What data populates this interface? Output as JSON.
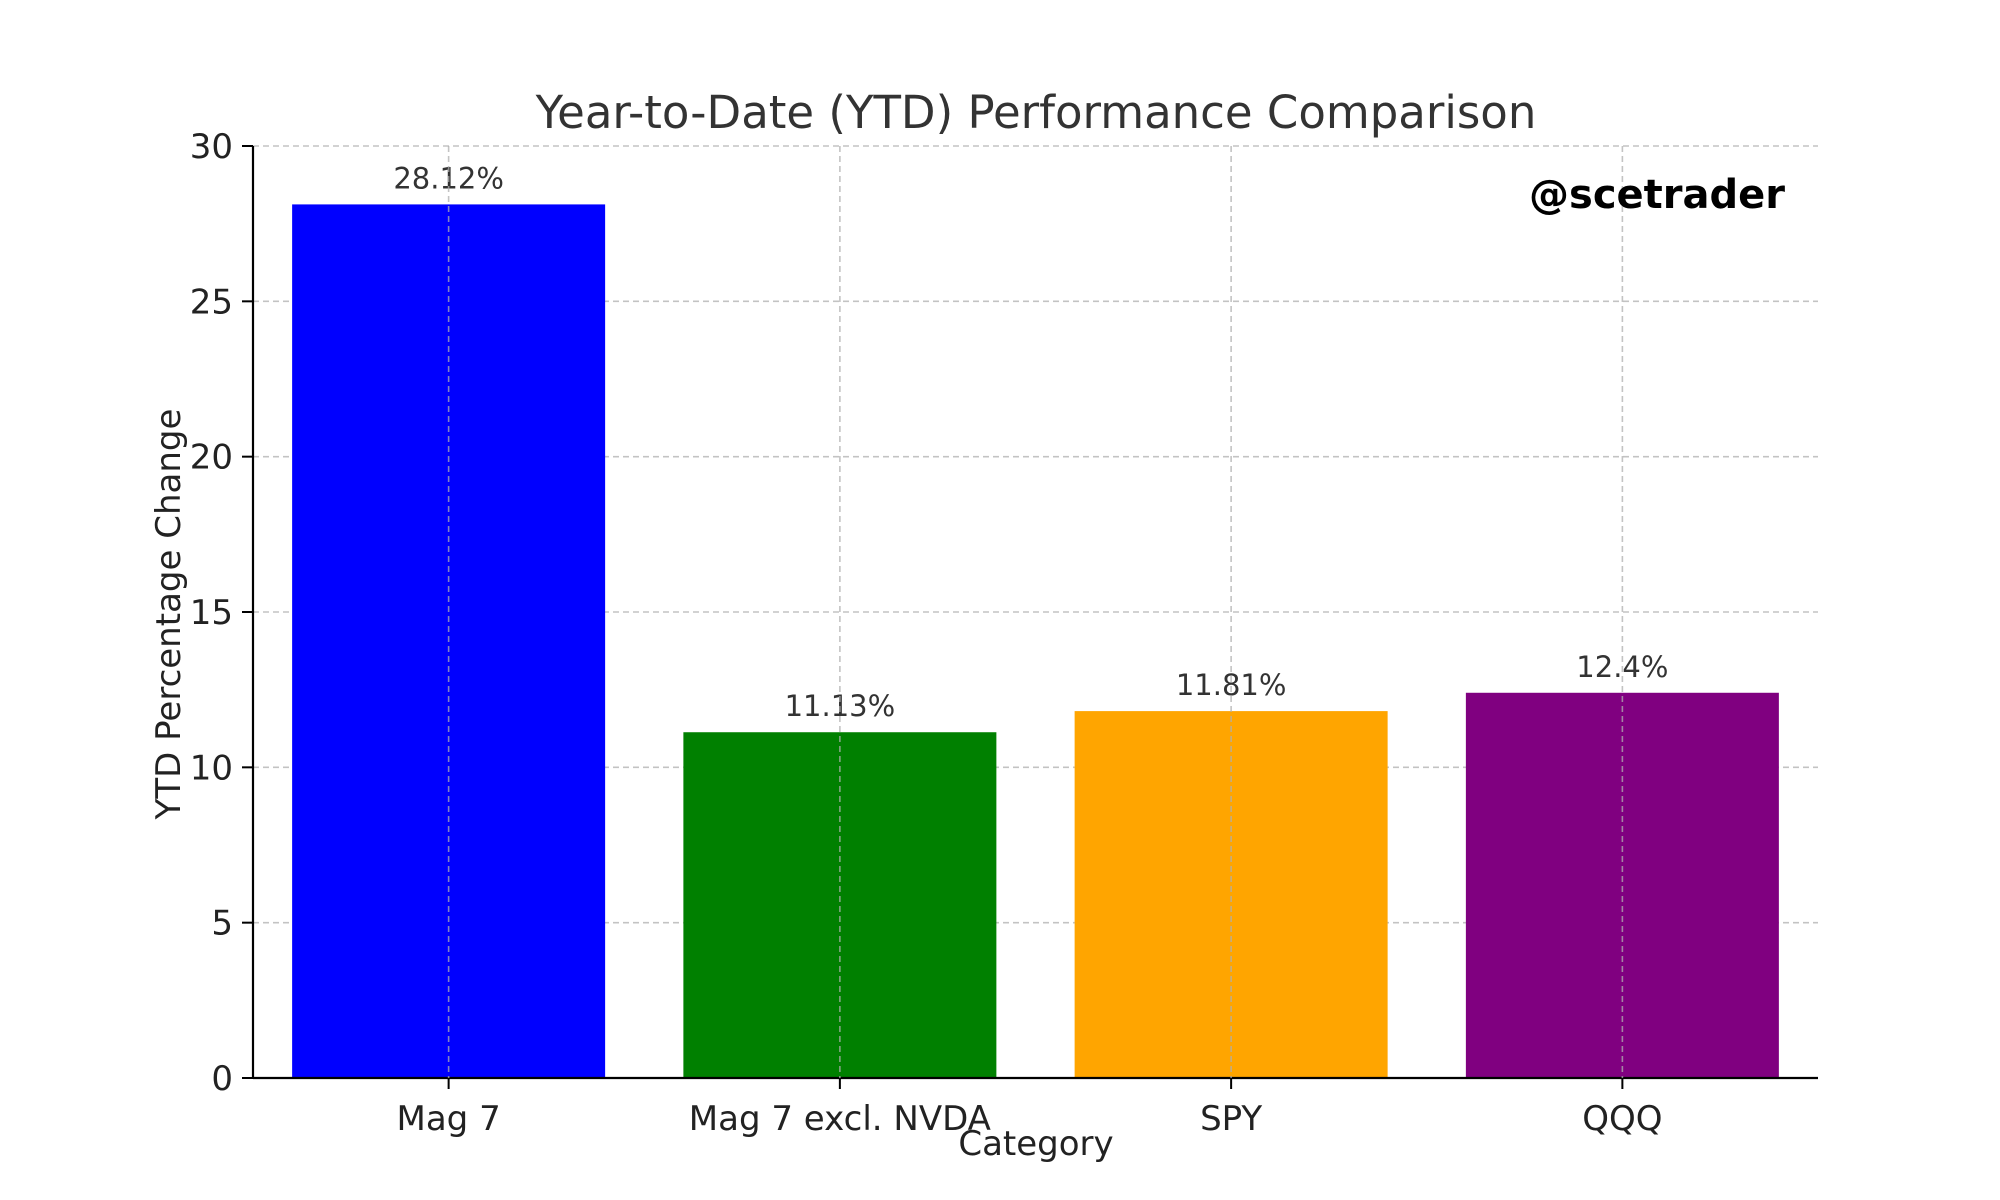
{
  "chart_data": {
    "type": "bar",
    "title": "Year-to-Date (YTD) Performance Comparison",
    "xlabel": "Category",
    "ylabel": "YTD Percentage Change",
    "categories": [
      "Mag 7",
      "Mag 7 excl. NVDA",
      "SPY",
      "QQQ"
    ],
    "values": [
      28.12,
      11.13,
      11.81,
      12.4
    ],
    "value_labels": [
      "28.12%",
      "11.13%",
      "11.81%",
      "12.4%"
    ],
    "colors": [
      "#0000ff",
      "#008000",
      "#ffa500",
      "#800080"
    ],
    "ylim": [
      0,
      30
    ],
    "yticks": [
      0,
      5,
      10,
      15,
      20,
      25,
      30
    ],
    "grid": true,
    "annotation": "@scetrader"
  }
}
